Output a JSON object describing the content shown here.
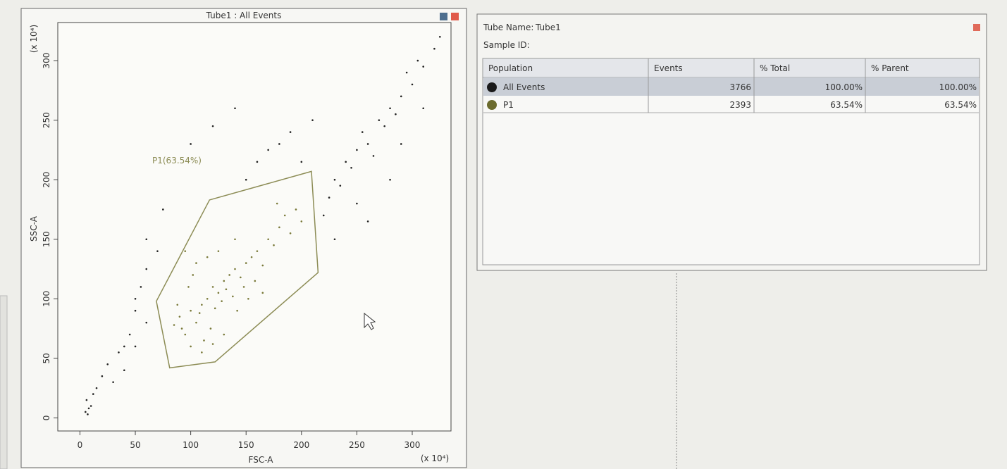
{
  "chart_data": {
    "type": "scatter",
    "title": "Tube1 : All Events",
    "xlabel": "FSC-A",
    "ylabel": "SSC-A",
    "x_multiplier": "(x 10⁴)",
    "y_multiplier": "(x 10⁴)",
    "xlim": [
      -20,
      335
    ],
    "ylim": [
      -11,
      332
    ],
    "xticks": [
      0,
      50,
      100,
      150,
      200,
      250,
      300
    ],
    "yticks": [
      0,
      50,
      100,
      150,
      200,
      250,
      300
    ],
    "series": [
      {
        "color": "#7a7a3a",
        "x": [
          100,
          110,
          115,
          120,
          125,
          130,
          105,
          95,
          90,
          135,
          140,
          145,
          150,
          118,
          112,
          108,
          128,
          122,
          132,
          138,
          155,
          160,
          165,
          170,
          175,
          100,
          92,
          85,
          88,
          98,
          102,
          115,
          125,
          142,
          148,
          152,
          158,
          180,
          185,
          190,
          195,
          200,
          110,
          120,
          130,
          105,
          95,
          140,
          165,
          178
        ],
        "values": [
          90,
          95,
          100,
          110,
          105,
          115,
          80,
          70,
          85,
          120,
          125,
          118,
          130,
          75,
          65,
          88,
          98,
          92,
          108,
          102,
          135,
          140,
          128,
          150,
          145,
          60,
          75,
          78,
          95,
          110,
          120,
          135,
          140,
          90,
          110,
          100,
          115,
          160,
          170,
          155,
          175,
          165,
          55,
          62,
          70,
          130,
          140,
          150,
          105,
          180
        ]
      },
      {
        "color": "#222222",
        "x": [
          5,
          7,
          8,
          10,
          6,
          12,
          15,
          20,
          25,
          30,
          35,
          40,
          45,
          50,
          55,
          60,
          70,
          60,
          40,
          50,
          230,
          240,
          250,
          260,
          270,
          280,
          290,
          300,
          310,
          320,
          220,
          225,
          235,
          245,
          255,
          265,
          275,
          285,
          295,
          305,
          180,
          190,
          200,
          210,
          150,
          160,
          170,
          60,
          75,
          50,
          250,
          280,
          310,
          325,
          140,
          120,
          230,
          260,
          290,
          100
        ],
        "values": [
          5,
          3,
          8,
          10,
          15,
          20,
          25,
          35,
          45,
          30,
          55,
          60,
          70,
          90,
          110,
          125,
          140,
          80,
          40,
          100,
          200,
          215,
          225,
          230,
          250,
          260,
          270,
          280,
          295,
          310,
          170,
          185,
          195,
          210,
          240,
          220,
          245,
          255,
          290,
          300,
          230,
          240,
          215,
          250,
          200,
          215,
          225,
          150,
          175,
          60,
          180,
          200,
          260,
          320,
          260,
          245,
          150,
          165,
          230,
          230
        ]
      }
    ],
    "gate": {
      "label": "P1(63.54%)",
      "color": "#8c8c55",
      "x": [
        117,
        209,
        215,
        122,
        81,
        69
      ],
      "y": [
        183,
        207,
        122,
        47,
        42,
        98
      ]
    }
  },
  "panel": {
    "tube_name_label": "Tube Name:",
    "tube_name": "Tube1",
    "sample_id_label": "Sample ID:",
    "table": {
      "columns": [
        "Population",
        "Events",
        "% Total",
        "% Parent"
      ],
      "rows": [
        {
          "color": "#1a1a1a",
          "cells": [
            "All Events",
            3766,
            "100.00%",
            "100.00%"
          ]
        },
        {
          "color": "#6b6b2e",
          "cells": [
            "P1",
            2393,
            "63.54%",
            "63.54%"
          ]
        }
      ]
    }
  }
}
